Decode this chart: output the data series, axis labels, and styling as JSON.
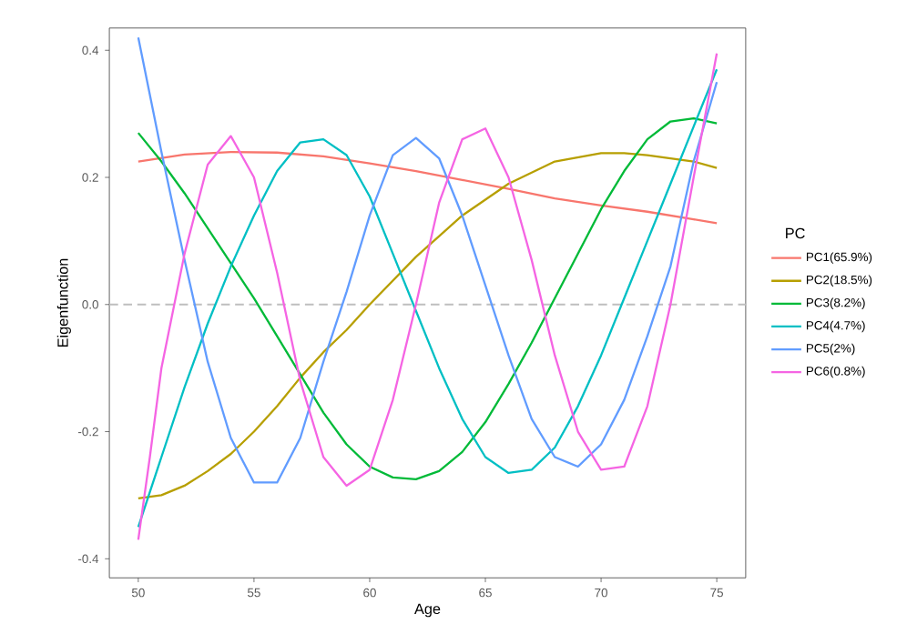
{
  "chart_data": {
    "type": "line",
    "xlabel": "Age",
    "ylabel": "Eigenfunction",
    "legend_title": "PC",
    "legend": "right",
    "xlim": [
      48.75,
      76.25
    ],
    "ylim": [
      -0.43,
      0.435
    ],
    "xticks": [
      50,
      55,
      60,
      65,
      70,
      75
    ],
    "yticks": [
      {
        "value": -0.4,
        "label": "-0.4"
      },
      {
        "value": -0.2,
        "label": "-0.2"
      },
      {
        "value": 0,
        "label": "0.0"
      },
      {
        "value": 0.2,
        "label": "0.2"
      },
      {
        "value": 0.4,
        "label": "0.4"
      }
    ],
    "grid": false,
    "line_style": "solid",
    "marker": "none",
    "ref_lines": [
      {
        "axis": "y",
        "value": 0,
        "color": "#bebebe",
        "line_style": "dashed"
      }
    ],
    "series": [
      {
        "name": "PC1(65.9%)",
        "color": "#F8766D",
        "x": [
          50,
          52,
          54,
          56,
          58,
          60,
          62,
          64,
          66,
          68,
          70,
          72,
          74,
          75
        ],
        "values": [
          0.225,
          0.236,
          0.24,
          0.239,
          0.233,
          0.222,
          0.21,
          0.196,
          0.182,
          0.167,
          0.156,
          0.146,
          0.134,
          0.128
        ]
      },
      {
        "name": "PC2(18.5%)",
        "color": "#B79F00",
        "x": [
          50,
          51,
          52,
          53,
          54,
          55,
          56,
          57,
          58,
          59,
          60,
          62,
          64,
          66,
          68,
          70,
          71,
          72,
          74,
          75
        ],
        "values": [
          -0.305,
          -0.3,
          -0.285,
          -0.262,
          -0.235,
          -0.2,
          -0.16,
          -0.115,
          -0.075,
          -0.04,
          0,
          0.075,
          0.14,
          0.19,
          0.225,
          0.238,
          0.238,
          0.235,
          0.225,
          0.215
        ]
      },
      {
        "name": "PC3(8.2%)",
        "color": "#00BA38",
        "x": [
          50,
          51,
          52,
          53,
          54,
          55,
          56,
          57,
          58,
          59,
          60,
          61,
          62,
          63,
          64,
          65,
          66,
          67,
          68,
          69,
          70,
          71,
          72,
          73,
          74,
          75
        ],
        "values": [
          0.27,
          0.225,
          0.175,
          0.12,
          0.065,
          0.01,
          -0.05,
          -0.11,
          -0.17,
          -0.22,
          -0.255,
          -0.272,
          -0.275,
          -0.262,
          -0.232,
          -0.185,
          -0.125,
          -0.06,
          0.01,
          0.08,
          0.15,
          0.21,
          0.26,
          0.288,
          0.293,
          0.285
        ]
      },
      {
        "name": "PC4(4.7%)",
        "color": "#00BFC4",
        "x": [
          50,
          51,
          52,
          53,
          54,
          55,
          56,
          57,
          58,
          59,
          60,
          61,
          62,
          63,
          64,
          65,
          66,
          67,
          68,
          69,
          70,
          71,
          72,
          73,
          74,
          75
        ],
        "values": [
          -0.35,
          -0.24,
          -0.13,
          -0.03,
          0.06,
          0.14,
          0.21,
          0.255,
          0.26,
          0.235,
          0.17,
          0.08,
          -0.01,
          -0.1,
          -0.18,
          -0.24,
          -0.265,
          -0.26,
          -0.225,
          -0.16,
          -0.08,
          0.01,
          0.1,
          0.19,
          0.28,
          0.37
        ]
      },
      {
        "name": "PC5(2%)",
        "color": "#619CFF",
        "x": [
          50,
          51,
          52,
          53,
          54,
          55,
          56,
          57,
          58,
          59,
          60,
          61,
          62,
          63,
          64,
          65,
          66,
          67,
          68,
          69,
          70,
          71,
          72,
          73,
          74,
          75
        ],
        "values": [
          0.42,
          0.24,
          0.07,
          -0.09,
          -0.21,
          -0.28,
          -0.28,
          -0.21,
          -0.09,
          0.02,
          0.14,
          0.235,
          0.262,
          0.23,
          0.14,
          0.03,
          -0.08,
          -0.18,
          -0.24,
          -0.255,
          -0.22,
          -0.15,
          -0.05,
          0.06,
          0.225,
          0.35
        ]
      },
      {
        "name": "PC6(0.8%)",
        "color": "#F564E3",
        "x": [
          50,
          50.5,
          51,
          52,
          53,
          54,
          55,
          56,
          57,
          58,
          59,
          60,
          61,
          62,
          63,
          64,
          65,
          66,
          67,
          68,
          69,
          70,
          71,
          72,
          73,
          74,
          75
        ],
        "values": [
          -0.37,
          -0.24,
          -0.1,
          0.08,
          0.22,
          0.265,
          0.2,
          0.05,
          -0.12,
          -0.24,
          -0.285,
          -0.26,
          -0.15,
          0,
          0.16,
          0.26,
          0.277,
          0.2,
          0.07,
          -0.08,
          -0.2,
          -0.26,
          -0.255,
          -0.16,
          0,
          0.2,
          0.395
        ]
      }
    ]
  }
}
